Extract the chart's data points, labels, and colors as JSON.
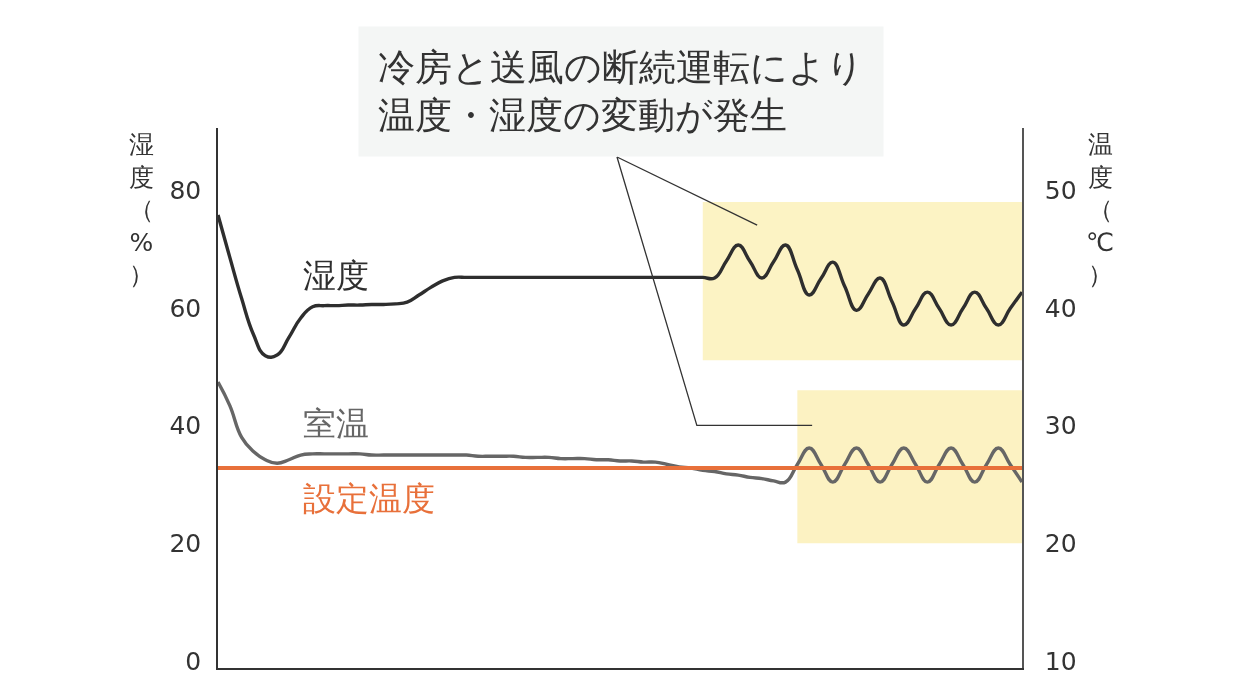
{
  "chart_data": {
    "type": "line",
    "categories": [
      null,
      null,
      null,
      null,
      null,
      null,
      null,
      null,
      null,
      null,
      null,
      null,
      null,
      null,
      null,
      null,
      null,
      null,
      null,
      null,
      null,
      null,
      null,
      null,
      null,
      null,
      null,
      null,
      null,
      null,
      null,
      null,
      null,
      null,
      null,
      null,
      null,
      null,
      null,
      null,
      null,
      null,
      null,
      null,
      null,
      null,
      null,
      null,
      null,
      null,
      null,
      null,
      null,
      null,
      null,
      null,
      null,
      null,
      null,
      null,
      null,
      null,
      null,
      null,
      null,
      null,
      null,
      null,
      null
    ],
    "series": [
      {
        "name": "湿度",
        "color": "#2e2e2e",
        "values": [
          75.8,
          68.6,
          61.6,
          55.5,
          51.9,
          52.0,
          55.0,
          58.3,
          60.2,
          60.4,
          60.4,
          60.5,
          60.5,
          60.6,
          60.6,
          60.7,
          61.0,
          62.2,
          63.5,
          64.6,
          65.2,
          65.2,
          65.2,
          65.2,
          65.2,
          65.2,
          65.2,
          65.2,
          65.2,
          65.2,
          65.2,
          65.2,
          65.2,
          65.2,
          65.2,
          65.2,
          65.2,
          65.2,
          65.2,
          65.2,
          65.2,
          65.2,
          65.1,
          68.0,
          70.7,
          67.9,
          65.1,
          67.9,
          70.7,
          66.5,
          62.2,
          65.0,
          67.8,
          63.7,
          59.6,
          62.4,
          65.1,
          61.1,
          57.1,
          59.9,
          62.7,
          59.9,
          57.1,
          59.9,
          62.7,
          59.9,
          57.1,
          59.9,
          62.7
        ],
        "lower": [
          null,
          null,
          null,
          null,
          null,
          null,
          null,
          null,
          null,
          null,
          null,
          null,
          null,
          null,
          null,
          null,
          null,
          null,
          null,
          null,
          null,
          null,
          null,
          null,
          null,
          null,
          null,
          null,
          null,
          null,
          null,
          null,
          null,
          null,
          null,
          null,
          null,
          null,
          null,
          null,
          null,
          51.1,
          51.1,
          51.1,
          51.1,
          51.1,
          51.1,
          51.1,
          51.1,
          51.1,
          51.1,
          51.1,
          51.1,
          51.1,
          51.1,
          51.1,
          51.1,
          51.1,
          51.1,
          51.1,
          51.1,
          51.1,
          51.1,
          51.1,
          51.1,
          51.1,
          51.1,
          51.1,
          51.1
        ],
        "upper": [
          null,
          null,
          null,
          null,
          null,
          null,
          null,
          null,
          null,
          null,
          null,
          null,
          null,
          null,
          null,
          null,
          null,
          null,
          null,
          null,
          null,
          null,
          null,
          null,
          null,
          null,
          null,
          null,
          null,
          null,
          null,
          null,
          null,
          null,
          null,
          null,
          null,
          null,
          null,
          null,
          null,
          78.0,
          78.0,
          78.0,
          78.0,
          78.0,
          78.0,
          78.0,
          78.0,
          78.0,
          78.0,
          78.0,
          78.0,
          78.0,
          78.0,
          78.0,
          78.0,
          78.0,
          78.0,
          78.0,
          78.0,
          78.0,
          78.0,
          78.0,
          78.0,
          78.0,
          78.0,
          78.0,
          78.0
        ]
      },
      {
        "name": "室温",
        "color": "#666666",
        "axis": "y2",
        "values": [
          33.7,
          31.7,
          29.0,
          27.8,
          27.1,
          26.8,
          27.1,
          27.5,
          27.6,
          27.6,
          27.6,
          27.6,
          27.6,
          27.5,
          27.5,
          27.5,
          27.5,
          27.5,
          27.5,
          27.5,
          27.5,
          27.5,
          27.4,
          27.4,
          27.4,
          27.4,
          27.3,
          27.3,
          27.3,
          27.2,
          27.2,
          27.2,
          27.1,
          27.1,
          27.0,
          27.0,
          26.9,
          26.9,
          26.7,
          26.5,
          26.4,
          26.2,
          26.1,
          25.9,
          25.8,
          25.6,
          25.5,
          25.3,
          25.2,
          26.7,
          28.1,
          26.7,
          25.2,
          26.7,
          28.1,
          26.7,
          25.2,
          26.7,
          28.1,
          26.7,
          25.2,
          26.7,
          28.1,
          26.7,
          25.2,
          26.7,
          28.1,
          26.7,
          25.2
        ],
        "lower": [
          null,
          null,
          null,
          null,
          null,
          null,
          null,
          null,
          null,
          null,
          null,
          null,
          null,
          null,
          null,
          null,
          null,
          null,
          null,
          null,
          null,
          null,
          null,
          null,
          null,
          null,
          null,
          null,
          null,
          null,
          null,
          null,
          null,
          null,
          null,
          null,
          null,
          null,
          null,
          null,
          null,
          null,
          null,
          null,
          null,
          null,
          null,
          null,
          null,
          20.0,
          20.0,
          20.0,
          20.0,
          20.0,
          20.0,
          20.0,
          20.0,
          20.0,
          20.0,
          20.0,
          20.0,
          20.0,
          20.0,
          20.0,
          20.0,
          20.0,
          20.0,
          20.0,
          20.0
        ],
        "upper": [
          null,
          null,
          null,
          null,
          null,
          null,
          null,
          null,
          null,
          null,
          null,
          null,
          null,
          null,
          null,
          null,
          null,
          null,
          null,
          null,
          null,
          null,
          null,
          null,
          null,
          null,
          null,
          null,
          null,
          null,
          null,
          null,
          null,
          null,
          null,
          null,
          null,
          null,
          null,
          null,
          null,
          null,
          null,
          null,
          null,
          null,
          null,
          null,
          null,
          33.0,
          33.0,
          33.0,
          33.0,
          33.0,
          33.0,
          33.0,
          33.0,
          33.0,
          33.0,
          33.0,
          33.0,
          33.0,
          33.0,
          33.0,
          33.0,
          33.0,
          33.0,
          33.0,
          33.0
        ]
      }
    ],
    "ylabel": "湿度（%）",
    "y2label": "温度（℃）",
    "ylim": [
      -1.2,
      90.6
    ],
    "yticks": [
      0,
      20,
      40,
      60,
      80
    ],
    "y2lim": [
      9.4,
      55.3
    ],
    "y2ticks": [
      10,
      20,
      30,
      40,
      50
    ],
    "ref_lines": [
      {
        "axis": "y2",
        "value": 26.4,
        "label": "設定温度",
        "color": "#e8703a"
      }
    ],
    "annotations": [
      "冷房と送風の断続運転により温度・湿度の変動が発生"
    ],
    "tick_labels": "y"
  }
}
